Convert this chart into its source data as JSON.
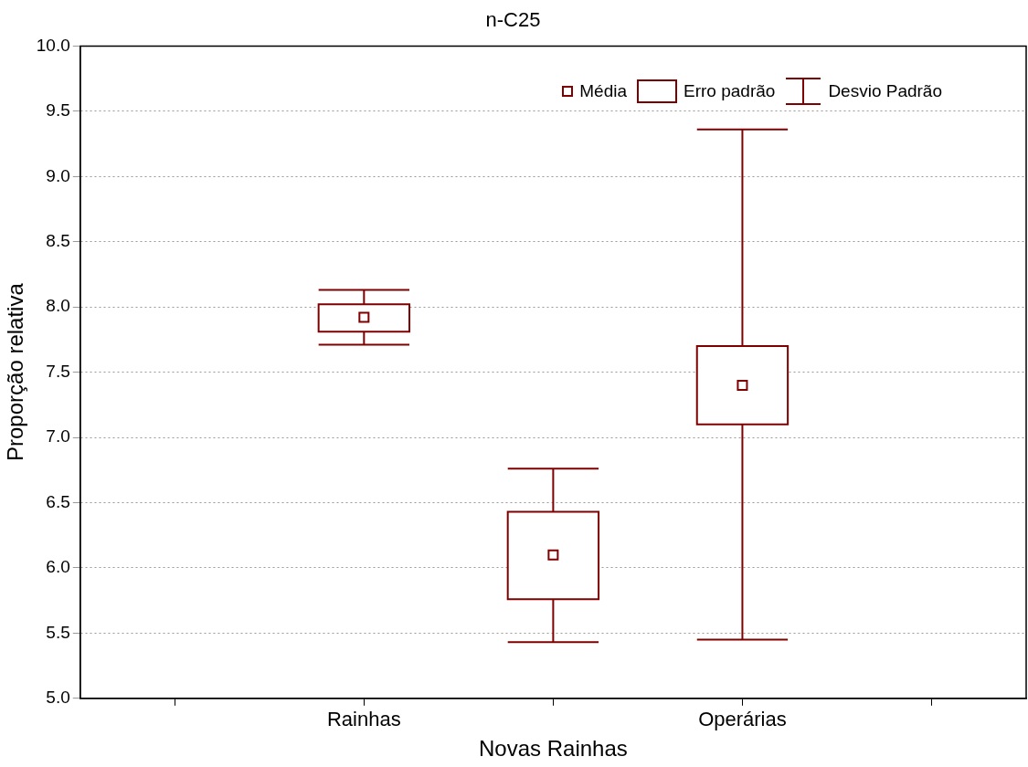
{
  "chart_data": {
    "type": "box",
    "title": "n-C25",
    "xlabel": "Novas Rainhas",
    "ylabel": "Proporção relativa",
    "categories": [
      null,
      "Rainhas",
      null,
      "Operárias",
      null
    ],
    "boxes": [
      null,
      {
        "low": 7.71,
        "q1": 7.81,
        "median": 7.92,
        "q3": 8.02,
        "high": 8.13
      },
      {
        "low": 5.43,
        "q1": 5.76,
        "median": 6.1,
        "q3": 6.43,
        "high": 6.76
      },
      {
        "low": 5.45,
        "q1": 7.1,
        "median": 7.4,
        "q3": 7.7,
        "high": 9.36
      },
      null
    ],
    "color": "#7f0000",
    "marker": "square",
    "ylim": [
      5.0,
      10.0
    ],
    "yticks": [
      {
        "value": 5,
        "label": "5.0"
      },
      {
        "value": 5.5,
        "label": "5.5"
      },
      {
        "value": 6,
        "label": "6.0"
      },
      {
        "value": 6.5,
        "label": "6.5"
      },
      {
        "value": 7,
        "label": "7.0"
      },
      {
        "value": 7.5,
        "label": "7.5"
      },
      {
        "value": 8,
        "label": "8.0"
      },
      {
        "value": 8.5,
        "label": "8.5"
      },
      {
        "value": 9,
        "label": "9.0"
      },
      {
        "value": 9.5,
        "label": "9.5"
      },
      {
        "value": 10,
        "label": "10.0"
      }
    ],
    "grid": "y",
    "annotations": [
      "Média",
      "Erro padrão",
      "Desvio Padrão"
    ]
  }
}
